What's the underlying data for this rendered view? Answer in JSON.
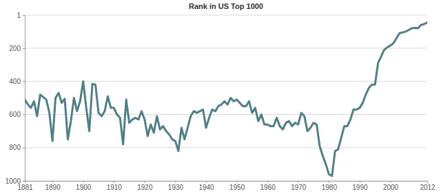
{
  "chart_data": {
    "type": "line",
    "title": "Rank in US Top 1000",
    "x": [
      1881,
      1882,
      1883,
      1884,
      1885,
      1886,
      1887,
      1888,
      1889,
      1890,
      1891,
      1892,
      1893,
      1894,
      1895,
      1896,
      1897,
      1898,
      1899,
      1900,
      1901,
      1902,
      1903,
      1904,
      1905,
      1906,
      1907,
      1908,
      1909,
      1910,
      1911,
      1912,
      1913,
      1914,
      1915,
      1916,
      1917,
      1918,
      1919,
      1920,
      1921,
      1922,
      1923,
      1924,
      1925,
      1926,
      1927,
      1928,
      1929,
      1930,
      1931,
      1932,
      1933,
      1934,
      1935,
      1936,
      1937,
      1938,
      1939,
      1940,
      1941,
      1942,
      1943,
      1944,
      1945,
      1946,
      1947,
      1948,
      1949,
      1950,
      1951,
      1952,
      1953,
      1954,
      1955,
      1956,
      1957,
      1958,
      1959,
      1960,
      1961,
      1962,
      1963,
      1964,
      1965,
      1966,
      1967,
      1968,
      1969,
      1970,
      1971,
      1972,
      1973,
      1974,
      1975,
      1976,
      1977,
      1978,
      1979,
      1980,
      1981,
      1982,
      1983,
      1984,
      1985,
      1986,
      1987,
      1988,
      1989,
      1990,
      1991,
      1992,
      1993,
      1994,
      1995,
      1996,
      1997,
      1998,
      1999,
      2000,
      2001,
      2002,
      2003,
      2004,
      2005,
      2006,
      2007,
      2008,
      2009,
      2010,
      2011,
      2012
    ],
    "values": [
      510,
      540,
      560,
      520,
      610,
      480,
      495,
      510,
      590,
      760,
      500,
      470,
      530,
      505,
      750,
      640,
      500,
      580,
      520,
      400,
      560,
      700,
      415,
      420,
      590,
      610,
      580,
      490,
      560,
      560,
      600,
      620,
      780,
      510,
      650,
      630,
      620,
      630,
      580,
      630,
      730,
      660,
      710,
      610,
      690,
      670,
      700,
      720,
      750,
      760,
      820,
      680,
      750,
      680,
      610,
      580,
      590,
      580,
      570,
      680,
      620,
      570,
      580,
      550,
      540,
      520,
      540,
      500,
      520,
      510,
      530,
      550,
      550,
      520,
      590,
      560,
      640,
      600,
      660,
      660,
      670,
      670,
      620,
      670,
      690,
      650,
      640,
      670,
      650,
      660,
      590,
      610,
      700,
      680,
      650,
      660,
      790,
      850,
      900,
      960,
      970,
      820,
      810,
      740,
      670,
      670,
      630,
      570,
      570,
      560,
      530,
      480,
      440,
      420,
      420,
      290,
      250,
      210,
      195,
      185,
      170,
      140,
      110,
      105,
      100,
      90,
      80,
      78,
      80,
      60,
      55,
      45
    ],
    "color": "#4f7f88",
    "xlim": [
      1881,
      2012
    ],
    "xticks": [
      1881,
      1890,
      1900,
      1910,
      1920,
      1930,
      1940,
      1950,
      1960,
      1970,
      1980,
      1990,
      2000,
      2012
    ],
    "ylim": [
      1,
      1000
    ],
    "yticks": [
      1,
      200,
      400,
      600,
      800,
      1000
    ],
    "grid": true
  }
}
